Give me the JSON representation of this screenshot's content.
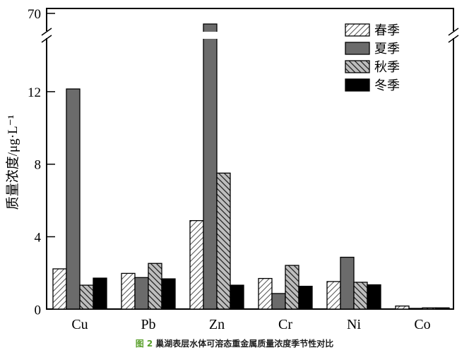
{
  "chart_data": {
    "type": "bar",
    "title": "",
    "xlabel": "",
    "ylabel": "质量浓度/μg·L⁻¹",
    "ylim": [
      0,
      70
    ],
    "axis_break": [
      14,
      60
    ],
    "yticks": [
      0,
      4,
      8,
      12,
      70
    ],
    "grid": false,
    "legend_position": "top-right",
    "categories": [
      "Cu",
      "Pb",
      "Zn",
      "Cr",
      "Ni",
      "Co"
    ],
    "series": [
      {
        "name": "春季",
        "color": "#ffffff",
        "pattern": "hatch-forward",
        "values": [
          2.23,
          1.98,
          4.89,
          1.7,
          1.53,
          0.18
        ]
      },
      {
        "name": "夏季",
        "color": "#6b6b6b",
        "pattern": "solid",
        "values": [
          12.15,
          1.75,
          64,
          0.87,
          2.87,
          0.05
        ]
      },
      {
        "name": "秋季",
        "color": "#bdbdbd",
        "pattern": "hatch-back",
        "values": [
          1.33,
          2.53,
          7.51,
          2.42,
          1.49,
          0.08
        ]
      },
      {
        "name": "冬季",
        "color": "#000000",
        "pattern": "solid",
        "values": [
          1.72,
          1.68,
          1.33,
          1.27,
          1.35,
          0.08
        ]
      }
    ]
  },
  "caption": {
    "figure_label": "图 2",
    "text": "巢湖表层水体可溶态重金属质量浓度季节性对比"
  }
}
